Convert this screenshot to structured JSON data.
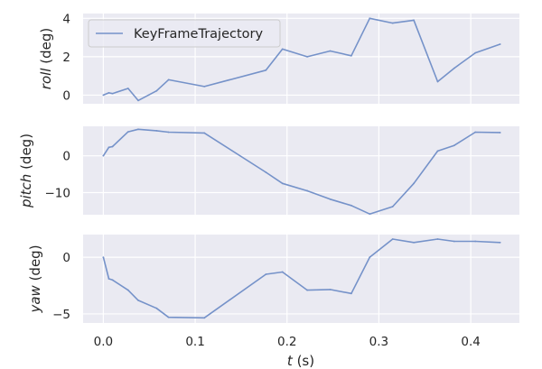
{
  "chart_data": {
    "type": "line",
    "xlabel_var": "t",
    "xlabel_unit": " (s)",
    "xlim": [
      -0.022,
      0.453
    ],
    "xticks": [
      0.0,
      0.1,
      0.2,
      0.3,
      0.4
    ],
    "xtick_labels": [
      "0.0",
      "0.1",
      "0.2",
      "0.3",
      "0.4"
    ],
    "legend": {
      "label": "KeyFrameTrajectory",
      "placement": "top-left",
      "panel": 0
    },
    "line_color": "#7592c9",
    "x": [
      0.0,
      0.006,
      0.01,
      0.027,
      0.038,
      0.058,
      0.071,
      0.11,
      0.177,
      0.195,
      0.222,
      0.247,
      0.27,
      0.29,
      0.315,
      0.338,
      0.364,
      0.382,
      0.405,
      0.432
    ],
    "panels": [
      {
        "ylabel_var": "roll",
        "ylabel_unit": " (deg)",
        "ylim": [
          -0.45,
          4.25
        ],
        "yticks": [
          0,
          2,
          4
        ],
        "ytick_labels": [
          "0",
          "2",
          "4"
        ],
        "series": [
          {
            "name": "KeyFrameTrajectory",
            "values": [
              0.0,
              0.12,
              0.08,
              0.35,
              -0.28,
              0.22,
              0.8,
              0.45,
              1.3,
              2.4,
              2.0,
              2.3,
              2.05,
              4.0,
              3.75,
              3.9,
              0.7,
              1.4,
              2.2,
              2.65
            ]
          }
        ]
      },
      {
        "ylabel_var": "pitch",
        "ylabel_unit": " (deg)",
        "ylim": [
          -16.0,
          8.0
        ],
        "yticks": [
          -10,
          0
        ],
        "ytick_labels": [
          "−10",
          "0"
        ],
        "series": [
          {
            "name": "KeyFrameTrajectory",
            "values": [
              0.0,
              2.3,
              2.5,
              6.5,
              7.2,
              6.8,
              6.4,
              6.2,
              -4.5,
              -7.5,
              -9.5,
              -11.8,
              -13.5,
              -15.8,
              -13.8,
              -7.5,
              1.3,
              2.8,
              6.4,
              6.3
            ]
          }
        ]
      },
      {
        "ylabel_var": "yaw",
        "ylabel_unit": " (deg)",
        "ylim": [
          -5.8,
          2.0
        ],
        "yticks": [
          -5,
          0
        ],
        "ytick_labels": [
          "−5",
          "0"
        ],
        "series": [
          {
            "name": "KeyFrameTrajectory",
            "values": [
              0.0,
              -1.9,
              -2.0,
              -2.9,
              -3.8,
              -4.5,
              -5.3,
              -5.35,
              -1.5,
              -1.3,
              -2.9,
              -2.85,
              -3.2,
              0.0,
              1.6,
              1.3,
              1.6,
              1.4,
              1.4,
              1.3
            ]
          }
        ]
      }
    ]
  }
}
